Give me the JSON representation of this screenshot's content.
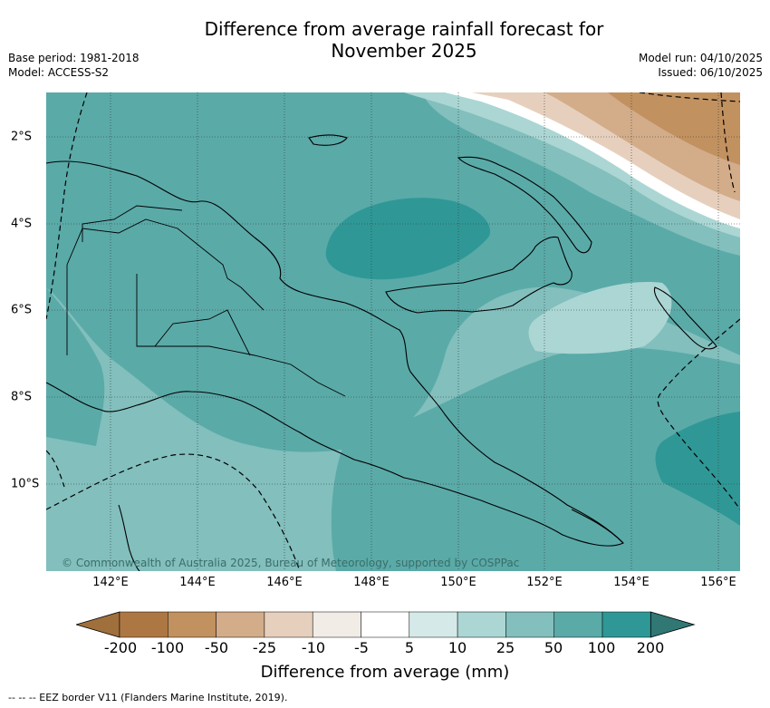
{
  "title_line1": "Difference from average rainfall forecast for",
  "title_line2": "November 2025",
  "base_period": "Base period: 1981-2018",
  "model": "Model: ACCESS-S2",
  "model_run": "Model run: 04/10/2025",
  "issued": "Issued: 06/10/2025",
  "copyright": "© Commonwealth of Australia 2025, Bureau of Meteorology, supported by COSPPac",
  "x_ticks": [
    "142°E",
    "144°E",
    "146°E",
    "148°E",
    "150°E",
    "152°E",
    "154°E",
    "156°E"
  ],
  "y_ticks": [
    "2°S",
    "4°S",
    "6°S",
    "8°S",
    "10°S"
  ],
  "colorbar": {
    "labels": [
      "-200",
      "-100",
      "-50",
      "-25",
      "-10",
      "-5",
      "5",
      "10",
      "25",
      "50",
      "100",
      "200"
    ],
    "colors": [
      "#a0703c",
      "#ad7744",
      "#c1915f",
      "#d3ac8a",
      "#e6d0bd",
      "#f2ece7",
      "#ffffff",
      "#d5eae8",
      "#abd6d4",
      "#82bfbd",
      "#5aaaa8",
      "#2f9896",
      "#317774"
    ],
    "title": "Difference from average (mm)"
  },
  "eez_note": "--  --  -- EEZ border V11 (Flanders Marine Institute, 2019)."
}
